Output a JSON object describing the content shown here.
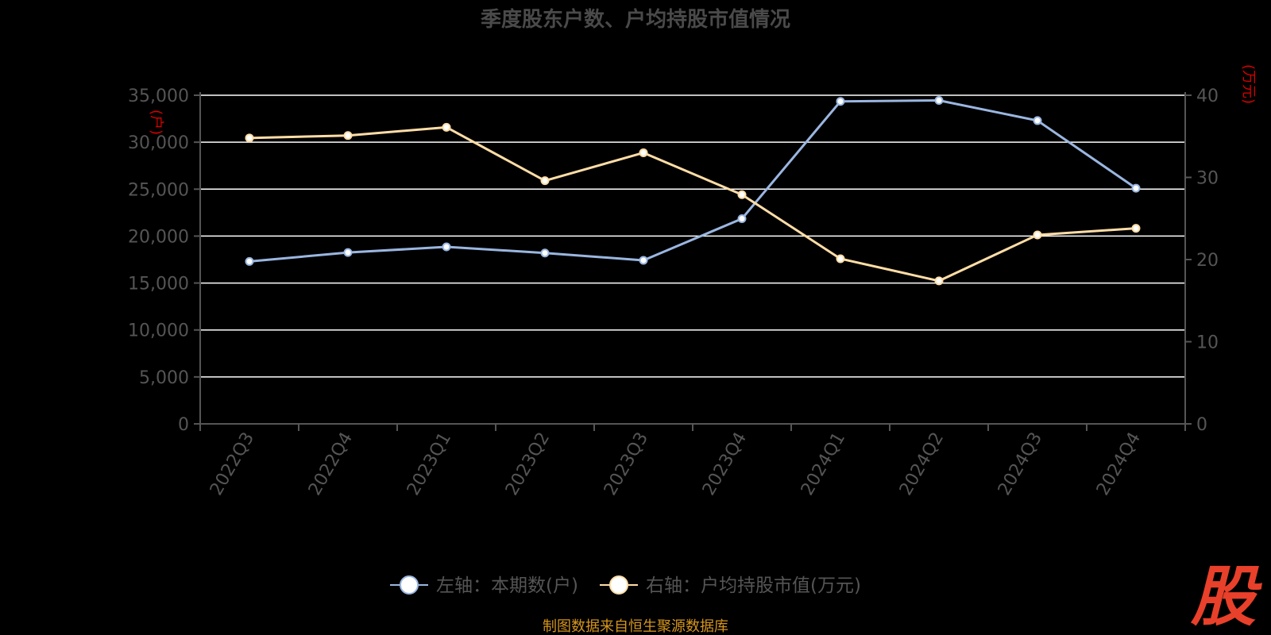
{
  "chart_data": {
    "type": "line",
    "title": "季度股东户数、户均持股市值情况",
    "categories": [
      "2022Q3",
      "2022Q4",
      "2023Q1",
      "2023Q2",
      "2023Q3",
      "2023Q4",
      "2024Q1",
      "2024Q2",
      "2024Q3",
      "2024Q4"
    ],
    "series": [
      {
        "name": "左轴：本期数(户)",
        "axis": "left",
        "color": "#9AB6E0",
        "values": [
          17300,
          18250,
          18850,
          18200,
          17420,
          21850,
          34350,
          34450,
          32300,
          25100
        ]
      },
      {
        "name": "右轴：户均持股市值(万元)",
        "axis": "right",
        "color": "#FFDDA6",
        "values": [
          34.8,
          35.1,
          36.1,
          29.6,
          33.0,
          27.9,
          20.1,
          17.4,
          23.0,
          23.8
        ]
      }
    ],
    "y_left": {
      "unit": "(户)",
      "ylim": [
        0,
        35000
      ],
      "ticks": [
        "0",
        "5,000",
        "10,000",
        "15,000",
        "20,000",
        "25,000",
        "30,000",
        "35,000"
      ]
    },
    "y_right": {
      "unit": "(万元)",
      "ylim": [
        0,
        40
      ],
      "ticks": [
        "0",
        "10",
        "20",
        "30",
        "40"
      ]
    },
    "grid": true,
    "legend_position": "bottom-center"
  },
  "source": "制图数据来自恒生聚源数据库",
  "watermark": "股",
  "colors": {
    "background": "#000000",
    "title": "#4A4A4A",
    "axis_text": "#555555",
    "grid": "#FFFFFF",
    "axis_line": "#555555",
    "unit": "#D40000",
    "source": "#D4941E",
    "watermark": "#E8402A"
  }
}
